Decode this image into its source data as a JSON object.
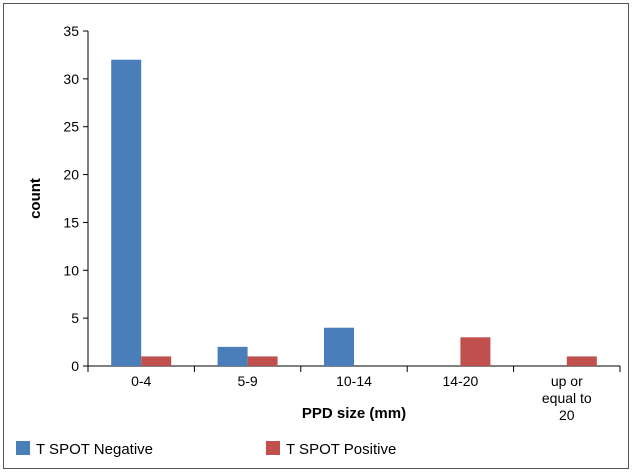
{
  "chart_data": {
    "type": "bar",
    "title": "",
    "xlabel": "PPD size (mm)",
    "ylabel": "count",
    "ylim": [
      0,
      35
    ],
    "yticks": [
      0,
      5,
      10,
      15,
      20,
      25,
      30,
      35
    ],
    "categories": [
      [
        "0-4"
      ],
      [
        "5-9"
      ],
      [
        "10-14"
      ],
      [
        "14-20"
      ],
      [
        "up or",
        "equal to",
        "20"
      ]
    ],
    "series": [
      {
        "name": "T SPOT Negative",
        "color": "#4a7ebb",
        "values": [
          32,
          2,
          4,
          0,
          0
        ]
      },
      {
        "name": "T SPOT Positive",
        "color": "#c0504d",
        "values": [
          1,
          1,
          0,
          3,
          1
        ]
      }
    ],
    "legend": "bottom-left",
    "grid": false
  }
}
